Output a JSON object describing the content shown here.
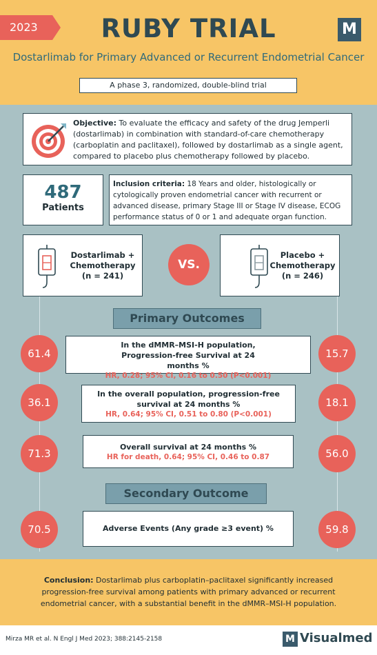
{
  "header": {
    "year": "2023",
    "title": "RUBY TRIAL",
    "logo": "M",
    "subtitle": "Dostarlimab for Primary Advanced or Recurrent Endometrial Cancer",
    "design": "A phase 3, randomized, double-blind trial"
  },
  "objective": {
    "icon": "target-icon",
    "label": "Objective:",
    "text": " To evaluate the efficacy and safety of the drug Jemperli (dostarlimab) in combination with standard-of-care chemotherapy (carboplatin and paclitaxel), followed by dostarlimab as a single agent, compared to placebo plus chemotherapy followed by placebo."
  },
  "patients": {
    "count": "487",
    "label": "Patients"
  },
  "inclusion": {
    "label": "Inclusion criteria:",
    "text": " 18 Years and older, histologically or cytologically proven endometrial cancer with recurrent or advanced disease, primary Stage III or Stage IV disease, ECOG performance status of 0 or 1 and adequate organ function."
  },
  "arms": {
    "left": {
      "line1": "Dostarlimab +",
      "line2": "Chemotherapy",
      "line3": "(n = 241)",
      "icon": "iv-bag-icon"
    },
    "vs": "VS.",
    "right": {
      "line1": "Placebo +",
      "line2": "Chemotherapy",
      "line3": "(n = 246)",
      "icon": "iv-bag-icon"
    }
  },
  "primary": {
    "heading": "Primary Outcomes",
    "outcomes": [
      {
        "title": "In the dMMR–MSI-H population, Progression-free Survival at 24 months %",
        "stat": "HR, 0.28; 95% CI, 0.16 to 0.50 (P<0.001)",
        "left": "61.4",
        "right": "15.7"
      },
      {
        "title": "In the overall population, progression-free survival at 24 months %",
        "stat": "HR, 0.64; 95% CI, 0.51 to 0.80 (P<0.001)",
        "left": "36.1",
        "right": "18.1"
      },
      {
        "title": "Overall survival at 24 months %",
        "stat": "HR for death, 0.64; 95% CI, 0.46 to 0.87",
        "left": "71.3",
        "right": "56.0"
      }
    ]
  },
  "secondary": {
    "heading": "Secondary Outcome",
    "outcome": {
      "title": "Adverse Events (Any grade ≥3 event) %",
      "left": "70.5",
      "right": "59.8"
    }
  },
  "conclusion": {
    "label": "Conclusion:",
    "text": " Dostarlimab plus carboplatin–paclitaxel significantly increased progression-free survival among patients with primary advanced or recurrent endometrial cancer, with a substantial benefit in the dMMR–MSI-H population."
  },
  "footer": {
    "citation": "Mirza MR et al. N Engl J Med 2023; 388:2145-2158",
    "brand_logo": "M",
    "brand_name": "Visualmed"
  },
  "colors": {
    "accent": "#e8625a",
    "header": "#f7c566",
    "background": "#a9c1c4",
    "dark": "#2f4952"
  }
}
